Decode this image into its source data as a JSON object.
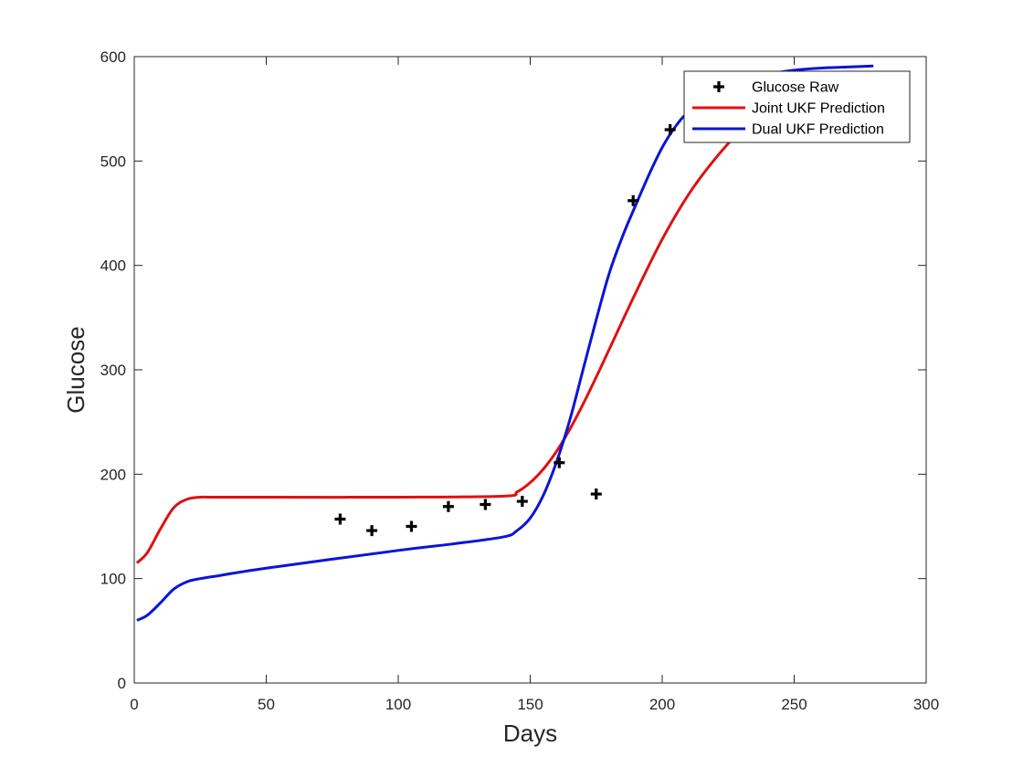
{
  "chart_data": {
    "type": "line",
    "title": "",
    "xlabel": "Days",
    "ylabel": "Glucose",
    "xlim": [
      0,
      300
    ],
    "ylim": [
      0,
      600
    ],
    "xticks": [
      0,
      50,
      100,
      150,
      200,
      250,
      300
    ],
    "yticks": [
      0,
      100,
      200,
      300,
      400,
      500,
      600
    ],
    "grid": false,
    "legend_position": "top-right",
    "series": [
      {
        "name": "Glucose Raw",
        "kind": "scatter",
        "marker": "plus",
        "color": "#000000",
        "x": [
          78,
          90,
          105,
          119,
          133,
          147,
          161,
          175,
          189,
          203
        ],
        "y": [
          157,
          146,
          150,
          169,
          171,
          174,
          211,
          181,
          462,
          530
        ]
      },
      {
        "name": "Joint UKF Prediction",
        "kind": "line",
        "color": "#e01010",
        "x": [
          1,
          5,
          10,
          15,
          20,
          25,
          30,
          50,
          100,
          140,
          145,
          150,
          155,
          160,
          165,
          170,
          175,
          180,
          190,
          200,
          210,
          220,
          230,
          240,
          250,
          260,
          270,
          280
        ],
        "y": [
          115,
          125,
          148,
          168,
          176,
          178,
          178,
          178,
          178,
          179,
          183,
          192,
          205,
          222,
          243,
          267,
          293,
          320,
          374,
          425,
          468,
          502,
          530,
          552,
          568,
          578,
          583,
          585
        ]
      },
      {
        "name": "Dual UKF Prediction",
        "kind": "line",
        "color": "#0a14d8",
        "x": [
          1,
          5,
          10,
          15,
          20,
          25,
          30,
          50,
          100,
          120,
          140,
          145,
          150,
          155,
          160,
          165,
          170,
          175,
          180,
          185,
          190,
          195,
          200,
          205,
          210,
          220,
          230,
          240,
          250,
          260,
          270,
          280
        ],
        "y": [
          60,
          65,
          77,
          90,
          97,
          100,
          102,
          110,
          127,
          133,
          140,
          146,
          158,
          180,
          212,
          252,
          300,
          348,
          393,
          428,
          458,
          487,
          513,
          533,
          547,
          565,
          576,
          583,
          587,
          589,
          590,
          591
        ]
      }
    ]
  }
}
